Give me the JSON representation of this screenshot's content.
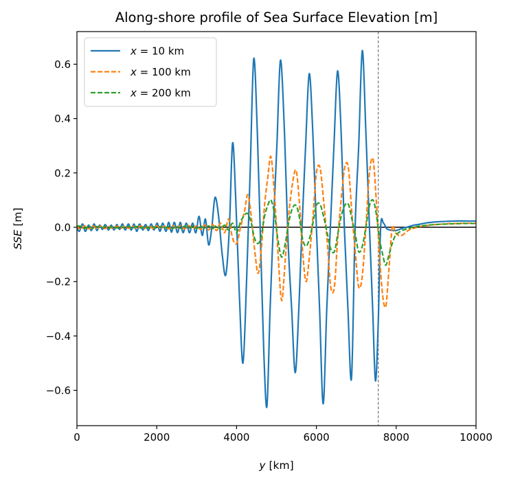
{
  "chart_data": {
    "type": "line",
    "title": "Along-shore profile of Sea Surface Elevation [m]",
    "xlabel": "y [km]",
    "ylabel": "SSE [m]",
    "xlim": [
      0,
      10000
    ],
    "ylim": [
      -0.73,
      0.72
    ],
    "xticks": [
      0,
      2000,
      4000,
      6000,
      8000,
      10000
    ],
    "xtick_labels": [
      "0",
      "2000",
      "4000",
      "6000",
      "8000",
      "10000"
    ],
    "yticks": [
      -0.6,
      -0.4,
      -0.2,
      0.0,
      0.2,
      0.4,
      0.6
    ],
    "ytick_labels": [
      "−0.6",
      "−0.4",
      "−0.2",
      "0.0",
      "0.2",
      "0.4",
      "0.6"
    ],
    "grid": false,
    "legend_position": "upper left",
    "reference_lines": [
      {
        "orientation": "horizontal",
        "y": 0.0,
        "color": "#000000",
        "style": "solid"
      },
      {
        "orientation": "vertical",
        "x": 7550,
        "color": "#808080",
        "style": "dashed"
      }
    ],
    "series": [
      {
        "name": "x = 10 km",
        "name_math": "x",
        "name_value": " = 10 km",
        "color": "#1f77b4",
        "style": "solid",
        "x": [
          0,
          60,
          140,
          210,
          290,
          360,
          430,
          500,
          570,
          640,
          710,
          790,
          860,
          930,
          1000,
          1070,
          1140,
          1210,
          1290,
          1360,
          1430,
          1500,
          1570,
          1650,
          1720,
          1790,
          1860,
          1930,
          2010,
          2080,
          2150,
          2230,
          2300,
          2370,
          2440,
          2520,
          2590,
          2660,
          2740,
          2820,
          2900,
          2980,
          3060,
          3140,
          3220,
          3300,
          3380,
          3460,
          3550,
          3640,
          3730,
          3820,
          3900,
          3980,
          4070,
          4160,
          4250,
          4340,
          4430,
          4520,
          4600,
          4680,
          4760,
          4840,
          4920,
          5010,
          5100,
          5200,
          5290,
          5380,
          5470,
          5560,
          5640,
          5730,
          5820,
          5910,
          6000,
          6080,
          6170,
          6260,
          6350,
          6440,
          6530,
          6620,
          6700,
          6790,
          6880,
          6970,
          7060,
          7150,
          7240,
          7330,
          7410,
          7480,
          7550,
          7610,
          7680,
          7760,
          7840,
          7920,
          8000,
          8080,
          8170,
          8260,
          8350,
          8450,
          8550,
          8650,
          8760,
          8880,
          9000,
          9150,
          9300,
          9500,
          9700,
          9850,
          10000
        ],
        "y": [
          0.0,
          -0.015,
          0.012,
          -0.015,
          0.008,
          -0.012,
          0.012,
          -0.012,
          0.008,
          -0.008,
          0.01,
          -0.01,
          0.008,
          -0.01,
          0.01,
          -0.008,
          0.012,
          -0.01,
          0.012,
          -0.01,
          0.012,
          -0.015,
          0.012,
          -0.01,
          0.01,
          -0.012,
          0.012,
          -0.01,
          0.015,
          -0.015,
          0.015,
          -0.015,
          0.018,
          -0.018,
          0.018,
          -0.02,
          0.018,
          -0.02,
          0.015,
          -0.02,
          0.015,
          -0.02,
          0.04,
          -0.03,
          0.03,
          -0.065,
          0.0,
          0.11,
          0.04,
          -0.1,
          -0.175,
          0.0,
          0.31,
          0.1,
          -0.25,
          -0.5,
          -0.2,
          0.2,
          0.62,
          0.35,
          -0.05,
          -0.45,
          -0.66,
          -0.3,
          0.0,
          0.3,
          0.615,
          0.35,
          -0.05,
          -0.3,
          -0.535,
          -0.3,
          0.0,
          0.3,
          0.565,
          0.35,
          0.0,
          -0.3,
          -0.65,
          -0.3,
          0.0,
          0.3,
          0.575,
          0.35,
          0.0,
          -0.3,
          -0.555,
          0.0,
          0.3,
          0.65,
          0.35,
          0.0,
          -0.3,
          -0.565,
          -0.35,
          0.0,
          0.015,
          -0.005,
          -0.01,
          -0.012,
          -0.012,
          -0.008,
          -0.003,
          0.0,
          0.004,
          0.008,
          0.01,
          0.013,
          0.016,
          0.018,
          0.02,
          0.021,
          0.022,
          0.023,
          0.023,
          0.023,
          0.023
        ]
      },
      {
        "name": "x = 100 km",
        "name_math": "x",
        "name_value": " = 100 km",
        "color": "#ff7f0e",
        "style": "dashed",
        "x": [
          0,
          100,
          200,
          300,
          400,
          500,
          600,
          700,
          800,
          900,
          1000,
          1100,
          1200,
          1300,
          1400,
          1500,
          1600,
          1700,
          1800,
          1900,
          2000,
          2100,
          2200,
          2300,
          2400,
          2500,
          2600,
          2700,
          2800,
          2900,
          3000,
          3100,
          3200,
          3300,
          3400,
          3500,
          3600,
          3700,
          3800,
          3900,
          4000,
          4100,
          4200,
          4280,
          4360,
          4450,
          4540,
          4620,
          4700,
          4780,
          4860,
          4950,
          5040,
          5130,
          5220,
          5310,
          5400,
          5490,
          5570,
          5650,
          5740,
          5830,
          5920,
          6000,
          6090,
          6180,
          6270,
          6360,
          6450,
          6530,
          6620,
          6710,
          6800,
          6890,
          6980,
          7060,
          7150,
          7240,
          7330,
          7420,
          7500,
          7580,
          7660,
          7740,
          7820,
          7900,
          7980,
          8060,
          8140,
          8230,
          8320,
          8420,
          8520,
          8620,
          8750,
          8900,
          9100,
          9300,
          9500,
          9750,
          10000
        ],
        "y": [
          0.005,
          -0.008,
          0.006,
          -0.006,
          0.005,
          -0.006,
          0.005,
          -0.005,
          0.004,
          -0.005,
          0.004,
          -0.004,
          0.004,
          -0.004,
          0.004,
          -0.004,
          0.005,
          -0.004,
          0.005,
          -0.004,
          0.005,
          -0.005,
          0.005,
          -0.006,
          0.006,
          -0.006,
          0.006,
          -0.006,
          0.006,
          -0.005,
          0.005,
          -0.008,
          0.008,
          -0.01,
          0.01,
          -0.012,
          0.015,
          -0.02,
          0.03,
          -0.04,
          -0.06,
          0.0,
          0.06,
          0.12,
          0.05,
          -0.08,
          -0.17,
          -0.08,
          0.08,
          0.18,
          0.26,
          0.12,
          -0.1,
          -0.27,
          -0.12,
          0.05,
          0.16,
          0.21,
          0.1,
          -0.08,
          -0.2,
          -0.1,
          0.05,
          0.2,
          0.22,
          0.1,
          -0.05,
          -0.22,
          -0.22,
          -0.05,
          0.1,
          0.22,
          0.22,
          0.05,
          -0.1,
          -0.22,
          -0.18,
          0.0,
          0.2,
          0.25,
          0.1,
          -0.1,
          -0.25,
          -0.29,
          -0.15,
          0.0,
          -0.02,
          -0.03,
          -0.03,
          -0.02,
          -0.01,
          -0.005,
          0.0,
          0.003,
          0.006,
          0.009,
          0.011,
          0.013,
          0.014,
          0.015,
          0.015
        ]
      },
      {
        "name": "x = 200 km",
        "name_math": "x",
        "name_value": " = 200 km",
        "color": "#2ca02c",
        "style": "dashed",
        "x": [
          0,
          100,
          200,
          300,
          400,
          500,
          600,
          700,
          800,
          900,
          1000,
          1100,
          1200,
          1300,
          1400,
          1500,
          1600,
          1700,
          1800,
          1900,
          2000,
          2100,
          2200,
          2300,
          2400,
          2500,
          2600,
          2700,
          2800,
          2900,
          3000,
          3100,
          3200,
          3300,
          3400,
          3500,
          3600,
          3700,
          3800,
          3900,
          4000,
          4100,
          4200,
          4280,
          4360,
          4450,
          4540,
          4620,
          4700,
          4780,
          4860,
          4950,
          5040,
          5130,
          5220,
          5310,
          5400,
          5490,
          5570,
          5650,
          5740,
          5830,
          5920,
          6000,
          6090,
          6180,
          6270,
          6360,
          6450,
          6530,
          6620,
          6710,
          6800,
          6890,
          6980,
          7060,
          7150,
          7240,
          7330,
          7420,
          7500,
          7580,
          7660,
          7740,
          7820,
          7900,
          7980,
          8060,
          8140,
          8230,
          8320,
          8420,
          8520,
          8620,
          8750,
          8900,
          9100,
          9300,
          9500,
          9750,
          10000
        ],
        "y": [
          0.005,
          0.003,
          -0.004,
          0.004,
          -0.004,
          0.003,
          -0.003,
          0.003,
          -0.003,
          0.003,
          -0.003,
          0.003,
          -0.003,
          0.003,
          -0.003,
          0.003,
          -0.003,
          0.003,
          -0.003,
          0.003,
          -0.003,
          0.003,
          -0.003,
          0.003,
          -0.004,
          0.004,
          -0.004,
          0.004,
          -0.004,
          0.004,
          -0.004,
          0.004,
          -0.004,
          0.005,
          -0.005,
          0.006,
          -0.007,
          0.008,
          -0.01,
          0.015,
          -0.02,
          0.02,
          0.045,
          0.05,
          0.02,
          -0.04,
          -0.06,
          -0.03,
          0.04,
          0.08,
          0.1,
          0.05,
          -0.05,
          -0.11,
          -0.06,
          0.02,
          0.07,
          0.08,
          0.04,
          -0.04,
          -0.07,
          -0.04,
          0.02,
          0.08,
          0.085,
          0.04,
          -0.02,
          -0.08,
          -0.09,
          -0.03,
          0.04,
          0.08,
          0.085,
          0.03,
          -0.03,
          -0.09,
          -0.07,
          0.0,
          0.08,
          0.1,
          0.05,
          -0.04,
          -0.1,
          -0.14,
          -0.1,
          -0.06,
          -0.03,
          -0.02,
          -0.012,
          -0.008,
          -0.004,
          0.0,
          0.003,
          0.005,
          0.007,
          0.009,
          0.011,
          0.012,
          0.013,
          0.014,
          0.014
        ]
      }
    ]
  }
}
